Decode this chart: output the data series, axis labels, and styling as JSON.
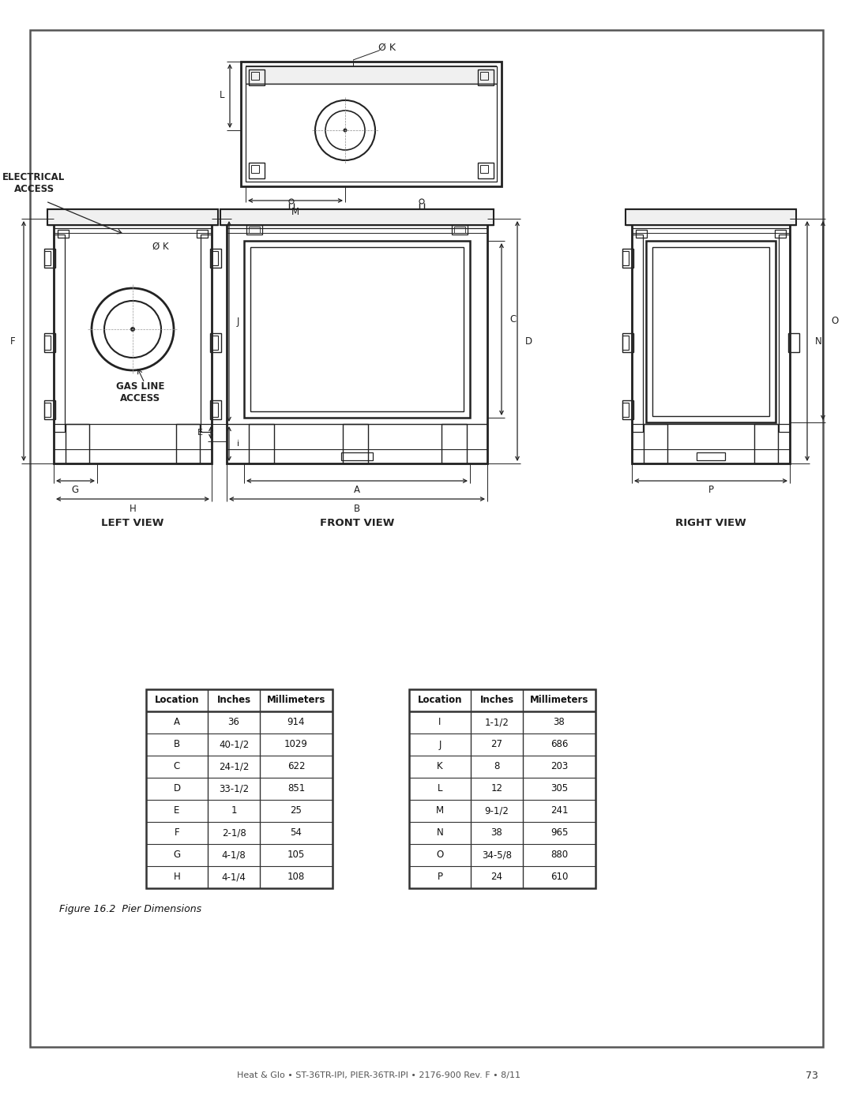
{
  "page_bg": "#ffffff",
  "line_color": "#222222",
  "title_footer": "Heat & Glo • ST-36TR-IPI, PIER-36TR-IPI • 2176-900 Rev. F • 8/11",
  "page_number": "73",
  "figure_caption": "Figure 16.2  Pier Dimensions",
  "table1": {
    "headers": [
      "Location",
      "Inches",
      "Millimeters"
    ],
    "rows": [
      [
        "A",
        "36",
        "914"
      ],
      [
        "B",
        "40-1/2",
        "1029"
      ],
      [
        "C",
        "24-1/2",
        "622"
      ],
      [
        "D",
        "33-1/2",
        "851"
      ],
      [
        "E",
        "1",
        "25"
      ],
      [
        "F",
        "2-1/8",
        "54"
      ],
      [
        "G",
        "4-1/8",
        "105"
      ],
      [
        "H",
        "4-1/4",
        "108"
      ]
    ]
  },
  "table2": {
    "headers": [
      "Location",
      "Inches",
      "Millimeters"
    ],
    "rows": [
      [
        "I",
        "1-1/2",
        "38"
      ],
      [
        "J",
        "27",
        "686"
      ],
      [
        "K",
        "8",
        "203"
      ],
      [
        "L",
        "12",
        "305"
      ],
      [
        "M",
        "9-1/2",
        "241"
      ],
      [
        "N",
        "38",
        "965"
      ],
      [
        "O",
        "34-5/8",
        "880"
      ],
      [
        "P",
        "24",
        "610"
      ]
    ]
  },
  "left_label": "LEFT VIEW",
  "front_label": "FRONT VIEW",
  "right_label": "RIGHT VIEW",
  "electrical_access": "ELECTRICAL\nACCESS",
  "gas_line_access": "GAS LINE\nACCESS",
  "ok_label": "Ø K"
}
